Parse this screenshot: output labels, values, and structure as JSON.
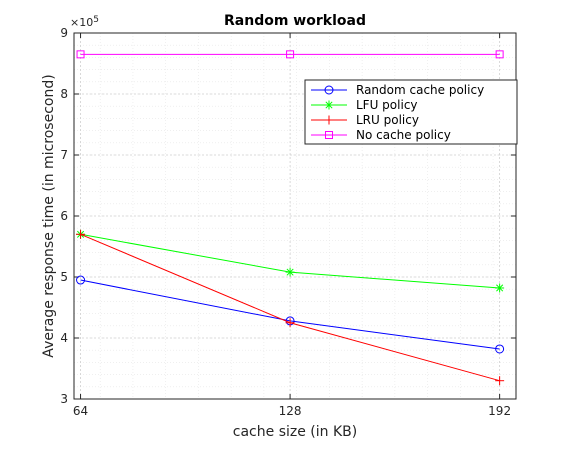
{
  "chart_data": {
    "type": "line",
    "title": "Random workload",
    "xlabel": "cache size (in KB)",
    "ylabel": "Average response time (in microsecond)",
    "y_exponent_label": "×10",
    "y_exponent_power": "5",
    "x": [
      64,
      128,
      192
    ],
    "x_tick_labels": [
      "64",
      "128",
      "192"
    ],
    "xlim": [
      62,
      197
    ],
    "ylim": [
      3,
      9
    ],
    "y_ticks": [
      3,
      4,
      5,
      6,
      7,
      8,
      9
    ],
    "y_tick_labels": [
      "3",
      "4",
      "5",
      "6",
      "7",
      "8",
      "9"
    ],
    "grid": true,
    "minor_grid": true,
    "legend_position": "top-right",
    "series": [
      {
        "name": "Random cache policy",
        "color": "#0000ff",
        "marker": "circle",
        "values": [
          4.95,
          4.28,
          3.82
        ]
      },
      {
        "name": "LFU policy",
        "color": "#00ff00",
        "marker": "asterisk",
        "values": [
          5.7,
          5.08,
          4.82
        ]
      },
      {
        "name": "LRU policy",
        "color": "#ff0000",
        "marker": "plus",
        "values": [
          5.7,
          4.25,
          3.3
        ]
      },
      {
        "name": "No cache policy",
        "color": "#ff00ff",
        "marker": "square",
        "values": [
          8.65,
          8.65,
          8.65
        ]
      }
    ]
  }
}
